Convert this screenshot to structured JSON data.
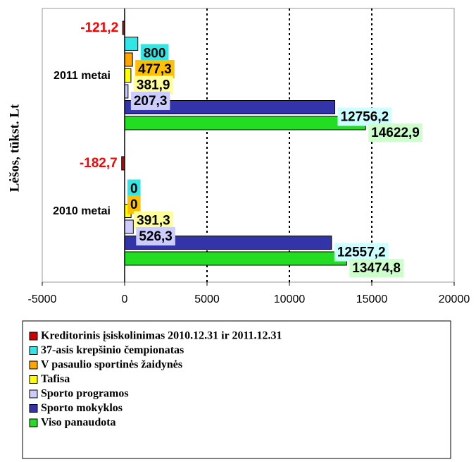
{
  "chart_data": {
    "type": "barh",
    "y_label": "Lėšos, tūkst. Lt",
    "categories": [
      "2011 metai",
      "2010 metai"
    ],
    "series": [
      {
        "name": "Kreditorinis įsiskolinimas 2010.12.31 ir 2011.12.31",
        "color": "#cc0000",
        "label_color": "#ff0000",
        "values": [
          -121.2,
          -182.7
        ],
        "value_labels": [
          "-121,2",
          "-182,7"
        ]
      },
      {
        "name": "37-asis krepšinio čempionatas",
        "color": "#33e6e6",
        "label_color": "#33e6e6",
        "values": [
          800,
          0
        ],
        "value_labels": [
          "800",
          "0"
        ]
      },
      {
        "name": "V pasaulio sportinės žaidynės",
        "color": "#ffa500",
        "label_color": "#ffc000",
        "values": [
          477.3,
          0
        ],
        "value_labels": [
          "477,3",
          "0"
        ]
      },
      {
        "name": "Tafisa",
        "color": "#ffff00",
        "label_color": "#ffff99",
        "values": [
          381.9,
          391.3
        ],
        "value_labels": [
          "381,9",
          "391,3"
        ]
      },
      {
        "name": "Sporto programos",
        "color": "#ccccff",
        "label_color": "#ccccff",
        "values": [
          207.3,
          526.3
        ],
        "value_labels": [
          "207,3",
          "526,3"
        ]
      },
      {
        "name": "Sporto mokyklos",
        "color": "#3333aa",
        "label_color": "#ccffff",
        "values": [
          12756.2,
          12557.2
        ],
        "value_labels": [
          "12756,2",
          "12557,2"
        ]
      },
      {
        "name": "Viso panaudota",
        "color": "#22dd22",
        "label_color": "#ccffcc",
        "values": [
          14622.9,
          13474.8
        ],
        "value_labels": [
          "14622,9",
          "13474,8"
        ]
      }
    ],
    "xlim": [
      -5000,
      20000
    ],
    "xticks": [
      -5000,
      0,
      5000,
      10000,
      15000,
      20000
    ],
    "grid": true
  }
}
